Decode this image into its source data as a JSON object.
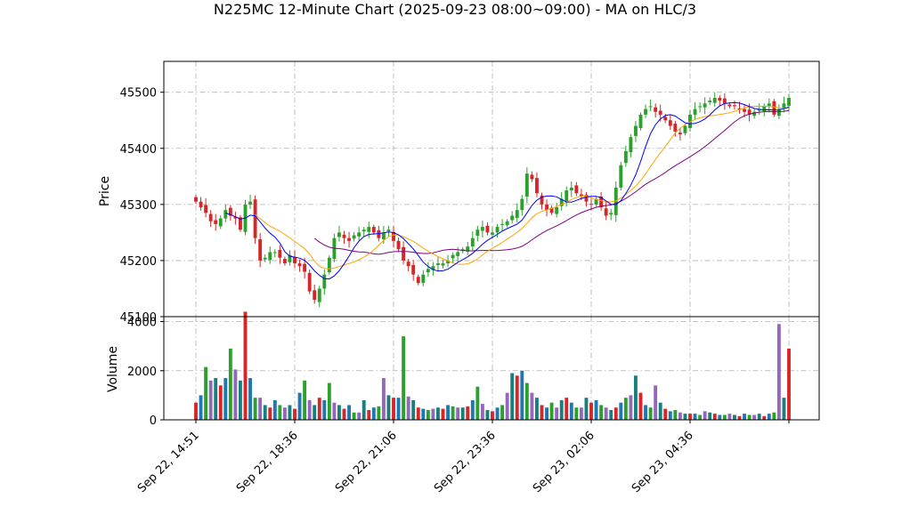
{
  "chart_data": {
    "type": "candlestick",
    "title": "N225MC 12-Minute Chart (2025-09-23 08:00~09:00) - MA on HLC/3",
    "price_panel": {
      "ylabel": "Price",
      "ylim": [
        45100,
        45555
      ],
      "yticks": [
        45100,
        45200,
        45300,
        45400,
        45500
      ],
      "grid": true
    },
    "volume_panel": {
      "ylabel": "Volume",
      "ylim": [
        0,
        4200
      ],
      "yticks": [
        0,
        2000,
        4000
      ],
      "grid": true
    },
    "x_tick_labels": [
      "Sep 22, 14:51",
      "Sep 22, 18:36",
      "Sep 22, 21:06",
      "Sep 22, 23:36",
      "Sep 23, 02:06",
      "Sep 23, 04:36"
    ],
    "x_tick_index": [
      0,
      20,
      40,
      60,
      80,
      100
    ],
    "bar_count": 121,
    "closes": [
      45305,
      45295,
      45285,
      45270,
      45265,
      45275,
      45290,
      45280,
      45275,
      45255,
      45300,
      45305,
      45240,
      45200,
      45205,
      45215,
      45215,
      45205,
      45195,
      45210,
      45195,
      45190,
      45180,
      45145,
      45130,
      45150,
      45175,
      45205,
      45240,
      45250,
      45240,
      45235,
      45245,
      45250,
      45255,
      45260,
      45250,
      45240,
      45250,
      45255,
      45235,
      45220,
      45200,
      45190,
      45175,
      45160,
      45175,
      45185,
      45190,
      45195,
      45195,
      45200,
      45210,
      45215,
      45220,
      45225,
      45240,
      45255,
      45260,
      45250,
      45250,
      45260,
      45265,
      45270,
      45280,
      45290,
      45310,
      45355,
      45345,
      45320,
      45300,
      45290,
      45285,
      45295,
      45310,
      45325,
      45330,
      45320,
      45315,
      45305,
      45300,
      45310,
      45295,
      45280,
      45285,
      45330,
      45370,
      45395,
      45420,
      45440,
      45460,
      45470,
      45475,
      45465,
      45460,
      45450,
      45440,
      45430,
      45425,
      45440,
      45460,
      45470,
      45475,
      45480,
      45485,
      45490,
      45485,
      45480,
      45475,
      45475,
      45470,
      45465,
      45460,
      45465,
      45470,
      45475,
      45480,
      45460,
      45470,
      45480,
      45490
    ],
    "volumes": [
      700,
      1000,
      2150,
      1600,
      1700,
      1400,
      1700,
      2900,
      2050,
      1600,
      4400,
      1700,
      900,
      900,
      600,
      500,
      800,
      600,
      500,
      600,
      450,
      1100,
      1600,
      800,
      600,
      900,
      800,
      1500,
      700,
      600,
      450,
      600,
      300,
      300,
      800,
      400,
      500,
      550,
      1700,
      1000,
      900,
      900,
      3400,
      950,
      800,
      500,
      450,
      400,
      450,
      500,
      450,
      600,
      550,
      500,
      500,
      550,
      800,
      1350,
      650,
      400,
      350,
      500,
      600,
      1100,
      1900,
      1800,
      2000,
      1500,
      1100,
      900,
      600,
      500,
      700,
      500,
      800,
      900,
      700,
      500,
      500,
      900,
      700,
      800,
      600,
      500,
      400,
      500,
      700,
      900,
      1000,
      1800,
      1100,
      600,
      500,
      1400,
      700,
      450,
      350,
      400,
      300,
      250,
      250,
      250,
      200,
      350,
      300,
      250,
      200,
      200,
      250,
      200,
      150,
      250,
      200,
      200,
      250,
      150,
      250,
      300,
      3900,
      900,
      2900
    ]
  }
}
